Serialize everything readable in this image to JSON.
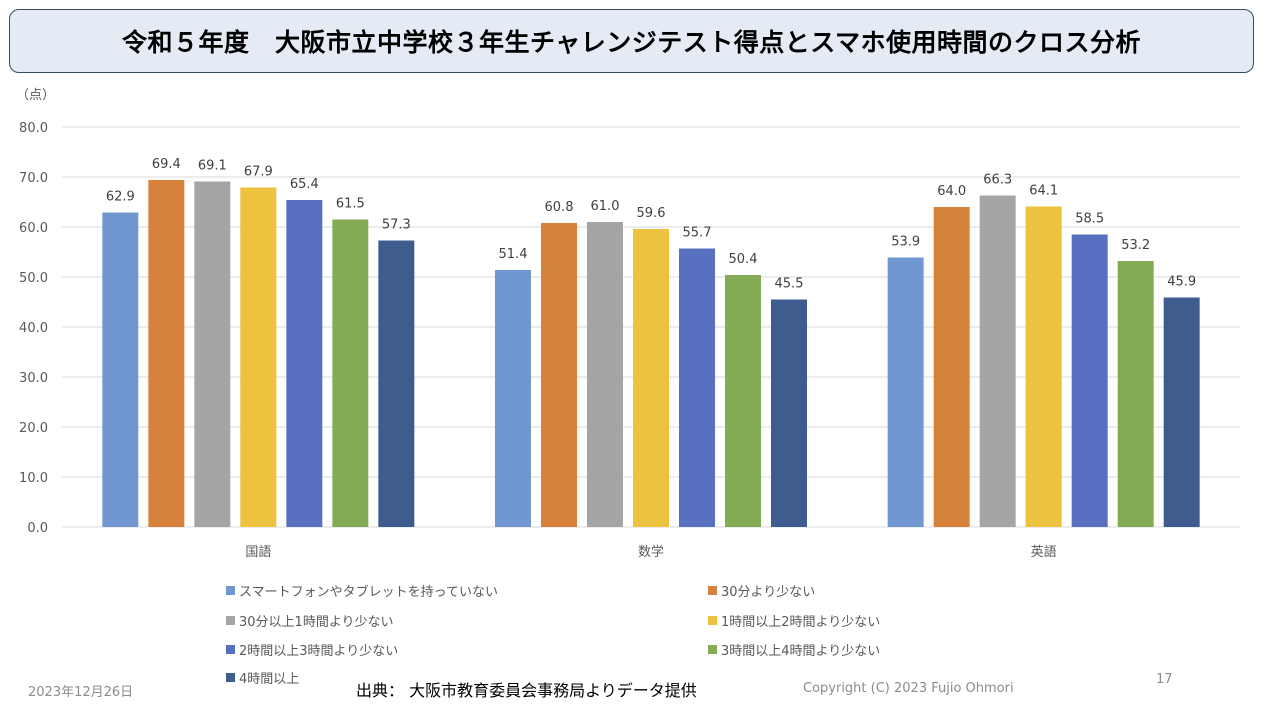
{
  "title": "令和５年度　大阪市立中学校３年生チャレンジテスト得点とスマホ使用時間のクロス分析",
  "chart_data": {
    "type": "bar",
    "title": "令和５年度　大阪市立中学校３年生チャレンジテスト得点とスマホ使用時間のクロス分析",
    "xlabel": "",
    "ylabel": "（点）",
    "ylim": [
      0,
      80
    ],
    "yticks": [
      0,
      10,
      20,
      30,
      40,
      50,
      60,
      70,
      80
    ],
    "ytick_labels": [
      "0.0",
      "10.0",
      "20.0",
      "30.0",
      "40.0",
      "50.0",
      "60.0",
      "70.0",
      "80.0"
    ],
    "grid": true,
    "legend_position": "bottom",
    "categories": [
      "国語",
      "数学",
      "英語"
    ],
    "series": [
      {
        "name": "スマートフォンやタブレットを持っていない",
        "color": "#7097d0",
        "values": [
          62.9,
          51.4,
          53.9
        ]
      },
      {
        "name": "30分より少ない",
        "color": "#d6823c",
        "values": [
          69.4,
          60.8,
          64.0
        ]
      },
      {
        "name": "30分以上1時間より少ない",
        "color": "#a5a5a5",
        "values": [
          69.1,
          61.0,
          66.3
        ]
      },
      {
        "name": "1時間以上2時間より少ない",
        "color": "#ecc23e",
        "values": [
          67.9,
          59.6,
          64.1
        ]
      },
      {
        "name": "2時間以上3時間より少ない",
        "color": "#5870c0",
        "values": [
          65.4,
          55.7,
          58.5
        ]
      },
      {
        "name": "3時間以上4時間より少ない",
        "color": "#84ac55",
        "values": [
          61.5,
          50.4,
          53.2
        ]
      },
      {
        "name": "4時間以上",
        "color": "#3e5c8e",
        "values": [
          57.3,
          45.5,
          45.9
        ]
      }
    ]
  },
  "footer": {
    "date": "2023年12月26日",
    "source": "出典： 大阪市教育委員会事務局よりデータ提供",
    "copyright": "Copyright (C) 2023 Fujio Ohmori",
    "page": "17"
  }
}
